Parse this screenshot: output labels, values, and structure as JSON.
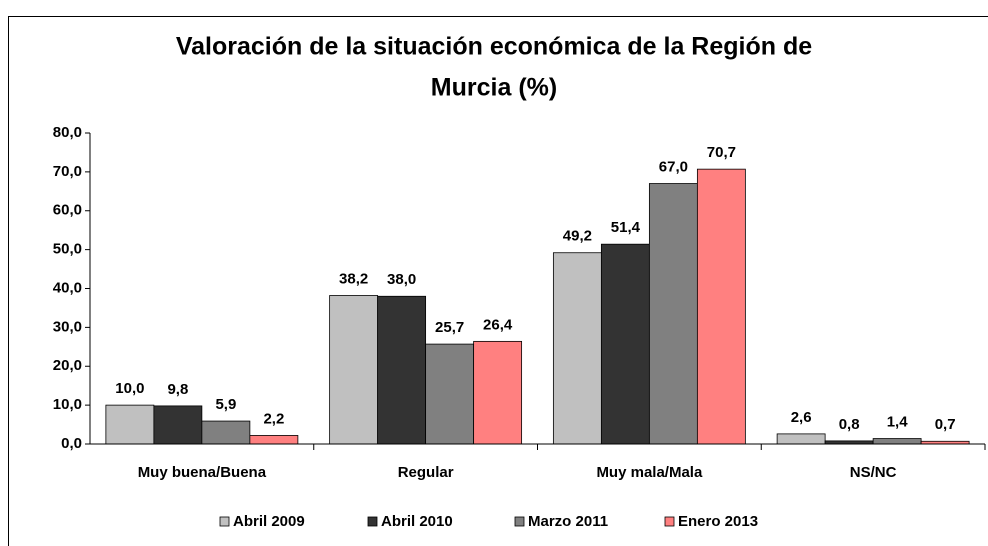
{
  "chart_data": {
    "type": "bar",
    "title": [
      "Valoración de la situación económica de la Región de",
      "Murcia (%)"
    ],
    "categories": [
      "Muy buena/Buena",
      "Regular",
      "Muy mala/Mala",
      "NS/NC"
    ],
    "series": [
      {
        "name": "Abril 2009",
        "color": "#c0c0c0",
        "values": [
          10.0,
          38.2,
          49.2,
          2.6
        ],
        "value_labels": [
          "10,0",
          "38,2",
          "49,2",
          "2,6"
        ]
      },
      {
        "name": "Abril 2010",
        "color": "#333333",
        "values": [
          9.8,
          38.0,
          51.4,
          0.8
        ],
        "value_labels": [
          "9,8",
          "38,0",
          "51,4",
          "0,8"
        ]
      },
      {
        "name": "Marzo 2011",
        "color": "#808080",
        "values": [
          5.9,
          25.7,
          67.0,
          1.4
        ],
        "value_labels": [
          "5,9",
          "25,7",
          "67,0",
          "1,4"
        ]
      },
      {
        "name": "Enero 2013",
        "color": "#ff8080",
        "values": [
          2.2,
          26.4,
          70.7,
          0.7
        ],
        "value_labels": [
          "2,2",
          "26,4",
          "70,7",
          "0,7"
        ]
      }
    ],
    "ylim": [
      0,
      80
    ],
    "yticks": [
      {
        "value": 0,
        "label": "0,0"
      },
      {
        "value": 10,
        "label": "10,0"
      },
      {
        "value": 20,
        "label": "20,0"
      },
      {
        "value": 30,
        "label": "30,0"
      },
      {
        "value": 40,
        "label": "40,0"
      },
      {
        "value": 50,
        "label": "50,0"
      },
      {
        "value": 60,
        "label": "60,0"
      },
      {
        "value": 70,
        "label": "70,0"
      },
      {
        "value": 80,
        "label": "80,0"
      }
    ],
    "grid": false,
    "legend": "bottom"
  }
}
